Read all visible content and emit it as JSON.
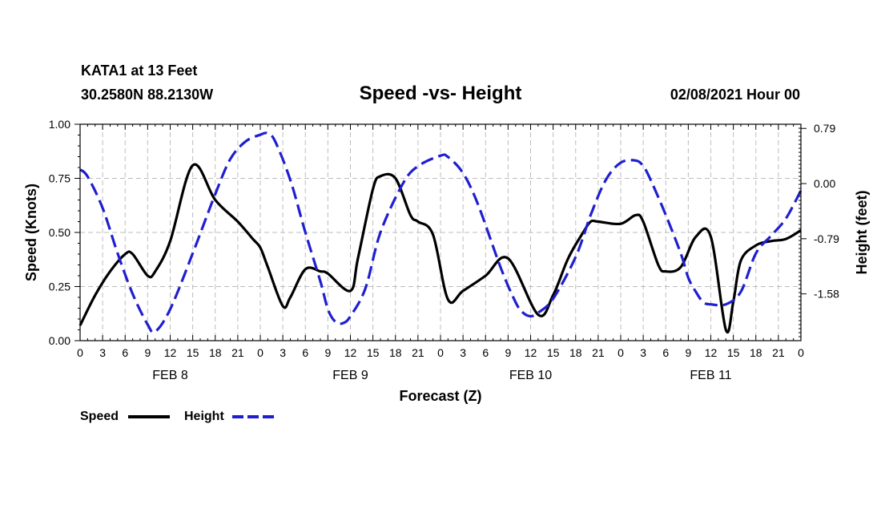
{
  "header": {
    "station": "KATA1 at 13 Feet",
    "coords": "30.2580N 88.2130W",
    "title": "Speed -vs- Height",
    "datetime": "02/08/2021 Hour 00"
  },
  "chart_data": {
    "type": "line",
    "title": "Speed -vs- Height",
    "xlabel": "Forecast (Z)",
    "ylabel": "Speed (Knots)",
    "y2label": "Height (feet)",
    "xlim": [
      0,
      96
    ],
    "ylim": [
      0,
      1.0
    ],
    "y2lim": [
      -2.25,
      0.85
    ],
    "grid": true,
    "x_ticks": [
      0,
      3,
      6,
      9,
      12,
      15,
      18,
      21,
      24,
      27,
      30,
      33,
      36,
      39,
      42,
      45,
      48,
      51,
      54,
      57,
      60,
      63,
      66,
      69,
      72,
      75,
      78,
      81,
      84,
      87,
      90,
      93,
      96
    ],
    "x_tick_labels": [
      "0",
      "3",
      "6",
      "9",
      "12",
      "15",
      "18",
      "21",
      "0",
      "3",
      "6",
      "9",
      "12",
      "15",
      "18",
      "21",
      "0",
      "3",
      "6",
      "9",
      "12",
      "15",
      "18",
      "21",
      "0",
      "3",
      "6",
      "9",
      "12",
      "15",
      "18",
      "21",
      "0"
    ],
    "day_labels": [
      {
        "text": "FEB 8",
        "hour": 12
      },
      {
        "text": "FEB 9",
        "hour": 36
      },
      {
        "text": "FEB 10",
        "hour": 60
      },
      {
        "text": "FEB 11",
        "hour": 84
      }
    ],
    "y_ticks": [
      0,
      0.25,
      0.5,
      0.75,
      1.0
    ],
    "y_tick_labels": [
      "0.00",
      "0.25",
      "0.50",
      "0.75",
      "1.00"
    ],
    "y2_ticks": [
      0.79,
      0.0,
      -0.79,
      -1.58
    ],
    "y2_tick_labels": [
      "0.79",
      "0.00",
      "-0.79",
      "-1.58"
    ],
    "series": [
      {
        "name": "Speed",
        "axis": "left",
        "color": "#000000",
        "dash": false,
        "x": [
          0,
          2,
          4,
          6,
          7,
          9,
          10,
          12,
          15,
          18,
          21,
          23,
          24,
          25,
          27,
          28,
          30,
          32,
          33,
          36,
          37,
          39,
          40,
          42,
          44,
          45,
          47,
          49,
          51,
          54,
          57,
          61,
          63,
          65,
          67,
          68,
          69,
          72,
          74,
          75,
          77,
          78,
          80,
          82,
          84,
          86,
          87,
          88,
          90,
          92,
          94,
          96
        ],
        "values": [
          0.07,
          0.21,
          0.32,
          0.4,
          0.4,
          0.3,
          0.32,
          0.46,
          0.81,
          0.65,
          0.55,
          0.47,
          0.43,
          0.34,
          0.16,
          0.2,
          0.33,
          0.32,
          0.31,
          0.23,
          0.38,
          0.7,
          0.76,
          0.75,
          0.58,
          0.55,
          0.49,
          0.19,
          0.23,
          0.3,
          0.38,
          0.12,
          0.21,
          0.38,
          0.5,
          0.55,
          0.55,
          0.54,
          0.58,
          0.55,
          0.35,
          0.32,
          0.34,
          0.48,
          0.48,
          0.05,
          0.18,
          0.37,
          0.44,
          0.46,
          0.47,
          0.51
        ]
      },
      {
        "name": "Height",
        "axis": "right",
        "color": "#1f1fcf",
        "dash": true,
        "x": [
          0,
          1,
          3,
          5,
          7,
          9,
          10,
          12,
          15,
          18,
          20,
          22,
          24,
          25,
          26,
          28,
          30,
          32,
          33,
          34,
          35,
          36,
          38,
          40,
          43,
          45,
          48,
          49,
          51,
          53,
          56,
          58,
          59,
          60,
          61,
          63,
          66,
          68,
          70,
          72,
          74,
          75,
          76,
          78,
          80,
          81,
          82,
          83,
          84,
          86,
          88,
          90,
          92,
          94,
          96
        ],
        "values": [
          0.2,
          0.1,
          -0.35,
          -1.0,
          -1.58,
          -2.02,
          -2.12,
          -1.8,
          -1.0,
          -0.15,
          0.35,
          0.6,
          0.7,
          0.72,
          0.6,
          0.05,
          -0.7,
          -1.4,
          -1.8,
          -1.98,
          -2.0,
          -1.9,
          -1.5,
          -0.7,
          0.0,
          0.25,
          0.4,
          0.38,
          0.15,
          -0.3,
          -1.2,
          -1.7,
          -1.85,
          -1.9,
          -1.85,
          -1.65,
          -1.05,
          -0.45,
          0.05,
          0.3,
          0.33,
          0.25,
          0.05,
          -0.45,
          -1.0,
          -1.35,
          -1.55,
          -1.7,
          -1.73,
          -1.73,
          -1.55,
          -1.0,
          -0.75,
          -0.5,
          -0.1
        ]
      }
    ]
  },
  "legend": {
    "speed_label": "Speed",
    "height_label": "Height"
  }
}
